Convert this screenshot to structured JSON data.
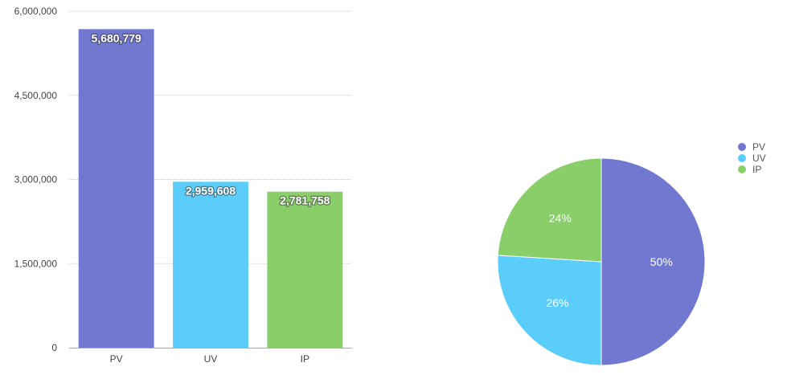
{
  "chart_data": [
    {
      "type": "bar",
      "categories": [
        "PV",
        "UV",
        "IP"
      ],
      "values": [
        5680779,
        2959608,
        2781758
      ],
      "value_labels": [
        "5,680,779",
        "2,959,608",
        "2,781,758"
      ],
      "yticks": [
        0,
        1500000,
        3000000,
        4500000,
        6000000
      ],
      "ytick_labels": [
        "0",
        "1,500,000",
        "3,000,000",
        "4,500,000",
        "6,000,000"
      ],
      "ylim": [
        0,
        6000000
      ],
      "colors": [
        "#7078cf",
        "#5bcdfa",
        "#8ace6a"
      ],
      "grid": true,
      "title": "",
      "xlabel": "",
      "ylabel": ""
    },
    {
      "type": "pie",
      "categories": [
        "PV",
        "UV",
        "IP"
      ],
      "values": [
        50,
        26,
        24
      ],
      "value_labels": [
        "50%",
        "26%",
        "24%"
      ],
      "colors": [
        "#7078cf",
        "#5bcdfa",
        "#8ace6a"
      ],
      "legend_position": "right",
      "title": ""
    }
  ]
}
